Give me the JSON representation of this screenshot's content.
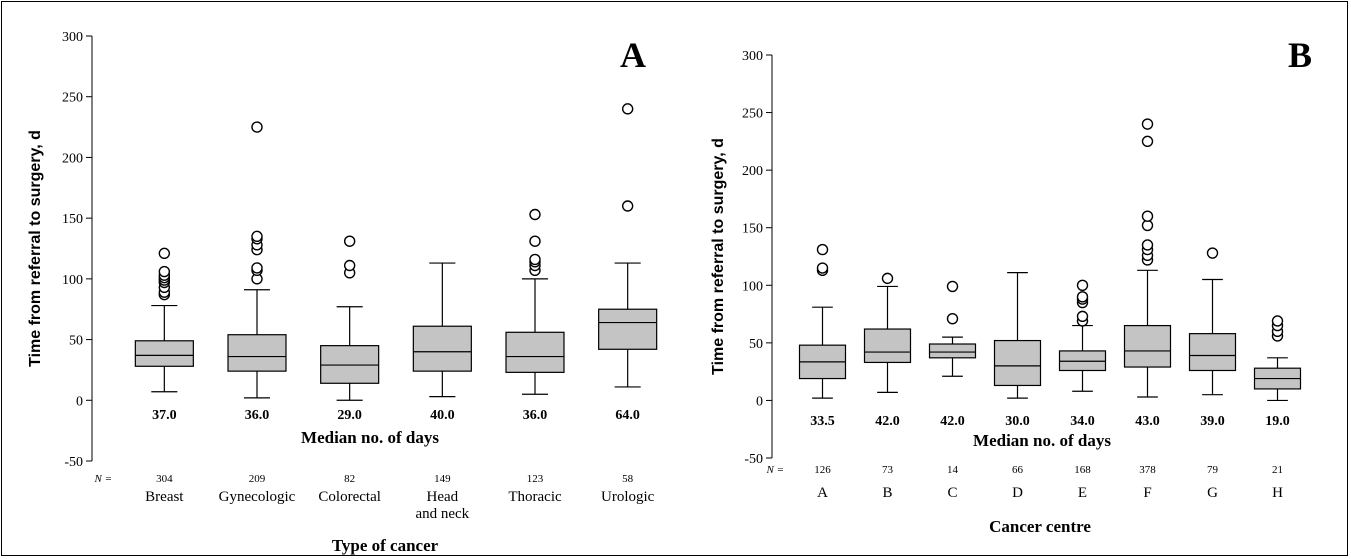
{
  "chart_data": [
    {
      "type": "box",
      "panel_label": "A",
      "ylabel": "Time from referral to surgery, d",
      "xlabel": "Type of cancer",
      "ylim": [
        -50,
        300
      ],
      "yticks": [
        -50,
        0,
        50,
        100,
        150,
        200,
        250,
        300
      ],
      "median_caption": "Median no. of days",
      "n_prefix": "N =",
      "categories": [
        "Breast",
        "Gynecologic",
        "Colorectal",
        "Head and neck",
        "Thoracic",
        "Urologic"
      ],
      "n": [
        "304",
        "209",
        "82",
        "149",
        "123",
        "58"
      ],
      "median_labels": [
        "37.0",
        "36.0",
        "29.0",
        "40.0",
        "36.0",
        "64.0"
      ],
      "boxes": [
        {
          "whisker_low": 7,
          "q1": 28,
          "median": 37,
          "q3": 49,
          "whisker_high": 78,
          "outliers": [
            87,
            89,
            93,
            97,
            99,
            101,
            103,
            106,
            121
          ]
        },
        {
          "whisker_low": 2,
          "q1": 24,
          "median": 36,
          "q3": 54,
          "whisker_high": 91,
          "outliers": [
            100,
            107,
            109,
            124,
            128,
            133,
            135,
            225
          ]
        },
        {
          "whisker_low": 0,
          "q1": 14,
          "median": 29,
          "q3": 45,
          "whisker_high": 77,
          "outliers": [
            105,
            111,
            131
          ]
        },
        {
          "whisker_low": 3,
          "q1": 24,
          "median": 40,
          "q3": 61,
          "whisker_high": 113,
          "outliers": []
        },
        {
          "whisker_low": 5,
          "q1": 23,
          "median": 36,
          "q3": 56,
          "whisker_high": 100,
          "outliers": [
            107,
            111,
            114,
            116,
            131,
            153
          ]
        },
        {
          "whisker_low": 11,
          "q1": 42,
          "median": 64,
          "q3": 75,
          "whisker_high": 113,
          "outliers": [
            160,
            240
          ]
        }
      ]
    },
    {
      "type": "box",
      "panel_label": "B",
      "ylabel": "Time from referral to surgery, d",
      "xlabel": "Cancer centre",
      "ylim": [
        -50,
        300
      ],
      "yticks": [
        -50,
        0,
        50,
        100,
        150,
        200,
        250,
        300
      ],
      "median_caption": "Median no. of days",
      "n_prefix": "N =",
      "categories": [
        "A",
        "B",
        "C",
        "D",
        "E",
        "F",
        "G",
        "H"
      ],
      "n": [
        "126",
        "73",
        "14",
        "66",
        "168",
        "378",
        "79",
        "21"
      ],
      "median_labels": [
        "33.5",
        "42.0",
        "42.0",
        "30.0",
        "34.0",
        "43.0",
        "39.0",
        "19.0"
      ],
      "boxes": [
        {
          "whisker_low": 2,
          "q1": 19,
          "median": 33.5,
          "q3": 48,
          "whisker_high": 81,
          "outliers": [
            113,
            115,
            131
          ]
        },
        {
          "whisker_low": 7,
          "q1": 33,
          "median": 42,
          "q3": 62,
          "whisker_high": 99,
          "outliers": [
            106
          ]
        },
        {
          "whisker_low": 21,
          "q1": 37,
          "median": 42,
          "q3": 49,
          "whisker_high": 55,
          "outliers": [
            71,
            99
          ]
        },
        {
          "whisker_low": 2,
          "q1": 13,
          "median": 30,
          "q3": 52,
          "whisker_high": 111,
          "outliers": []
        },
        {
          "whisker_low": 8,
          "q1": 26,
          "median": 34,
          "q3": 43,
          "whisker_high": 65,
          "outliers": [
            69,
            73,
            85,
            88,
            90,
            100
          ]
        },
        {
          "whisker_low": 3,
          "q1": 29,
          "median": 43,
          "q3": 65,
          "whisker_high": 113,
          "outliers": [
            122,
            126,
            131,
            135,
            152,
            160,
            225,
            240
          ]
        },
        {
          "whisker_low": 5,
          "q1": 26,
          "median": 39,
          "q3": 58,
          "whisker_high": 105,
          "outliers": [
            128
          ]
        },
        {
          "whisker_low": 0,
          "q1": 10,
          "median": 19,
          "q3": 28,
          "whisker_high": 37,
          "outliers": [
            56,
            60,
            65,
            69
          ]
        }
      ]
    }
  ]
}
